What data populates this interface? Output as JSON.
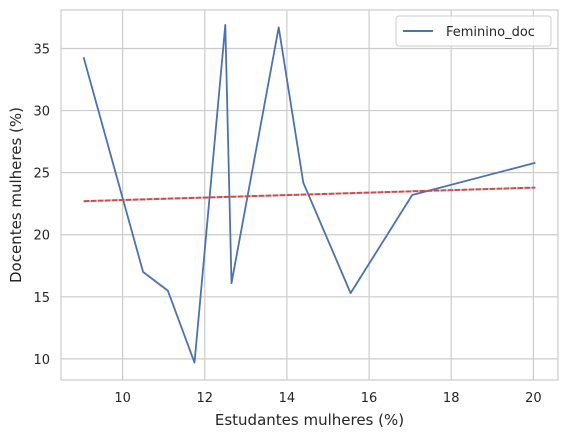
{
  "chart_data": {
    "type": "line",
    "xlabel": "Estudantes mulheres (%)",
    "ylabel": "Docentes mulheres (%)",
    "xlim": [
      8.5,
      20.6
    ],
    "ylim": [
      8.3,
      38.1
    ],
    "xticks": [
      10,
      12,
      14,
      16,
      18,
      20
    ],
    "yticks": [
      10,
      15,
      20,
      25,
      30,
      35
    ],
    "grid": true,
    "legend_position": "top-right",
    "series": [
      {
        "name": "Feminino_doc",
        "color": "#4c72b0",
        "x": [
          9.05,
          10.5,
          11.1,
          11.75,
          12.5,
          12.65,
          13.8,
          14.4,
          15.55,
          17.05,
          20.05
        ],
        "y": [
          34.3,
          17.0,
          15.5,
          9.7,
          36.9,
          16.1,
          36.7,
          24.2,
          15.3,
          23.2,
          25.8
        ]
      },
      {
        "color": "#c44e52",
        "x": [
          9.05,
          20.05
        ],
        "y": [
          22.7,
          23.8
        ]
      }
    ]
  }
}
